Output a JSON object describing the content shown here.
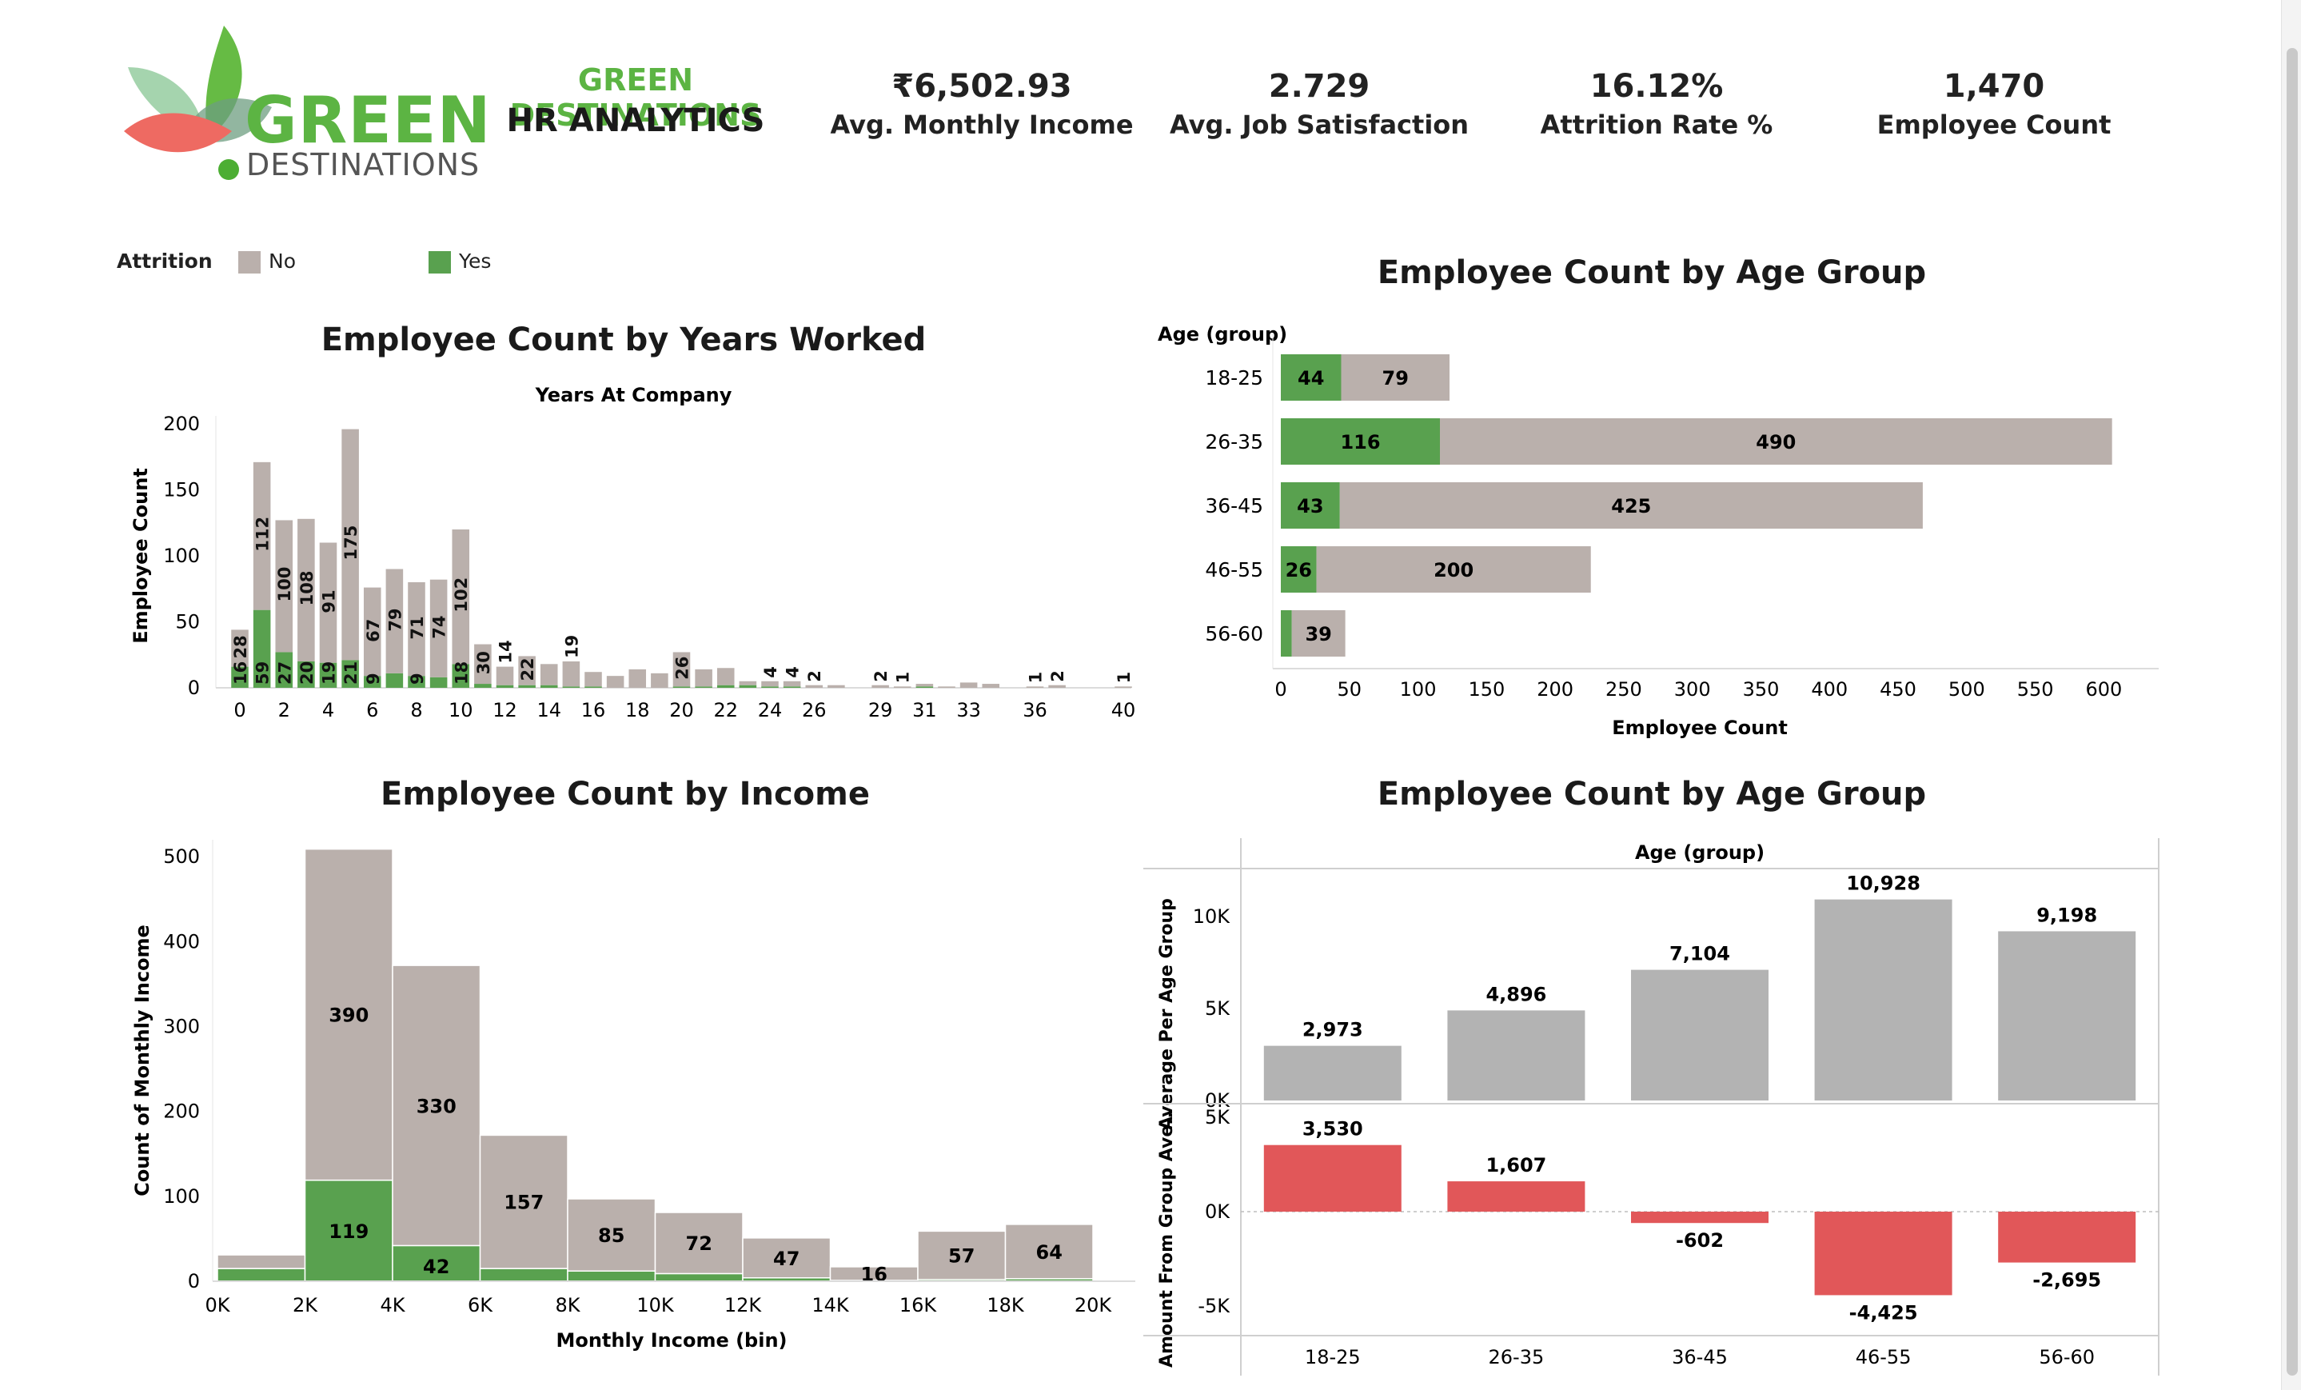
{
  "header": {
    "logo_word1": "GREEN",
    "logo_word2": "DESTINATIONS",
    "brand_title": "GREEN DESTINATIONS",
    "brand_subtitle": "HR ANALYTICS"
  },
  "kpis": [
    {
      "value": "₹6,502.93",
      "label": "Avg. Monthly Income"
    },
    {
      "value": "2.729",
      "label": "Avg. Job Satisfaction"
    },
    {
      "value": "16.12%",
      "label": "Attrition Rate %"
    },
    {
      "value": "1,470",
      "label": "Employee Count"
    }
  ],
  "legend": {
    "title": "Attrition",
    "items": [
      {
        "label": "No",
        "color": "#bab0ac"
      },
      {
        "label": "Yes",
        "color": "#59a14f"
      }
    ]
  },
  "colors": {
    "no": "#bab0ac",
    "yes": "#59a14f",
    "avg_bar": "#b3b3b3",
    "diff_bar": "#e15759"
  },
  "chart_data": [
    {
      "type": "bar",
      "title": "Employee Count by Years Worked",
      "subtitle": "Years At Company",
      "ylabel": "Employee Count",
      "ylim": [
        0,
        200
      ],
      "yticks": [
        0,
        50,
        100,
        150,
        200
      ],
      "xticks": [
        "0",
        "2",
        "4",
        "6",
        "8",
        "10",
        "12",
        "14",
        "16",
        "18",
        "20",
        "22",
        "24",
        "26",
        "29",
        "31",
        "33",
        "36",
        "40"
      ],
      "categories": [
        0,
        1,
        2,
        3,
        4,
        5,
        6,
        7,
        8,
        9,
        10,
        11,
        12,
        13,
        14,
        15,
        16,
        17,
        18,
        19,
        20,
        21,
        22,
        23,
        24,
        25,
        26,
        27,
        29,
        30,
        31,
        32,
        33,
        34,
        36,
        37,
        40
      ],
      "series": [
        {
          "name": "Yes",
          "values": [
            16,
            59,
            27,
            20,
            19,
            21,
            9,
            11,
            9,
            8,
            18,
            3,
            2,
            2,
            2,
            1,
            1,
            0,
            0,
            0,
            1,
            1,
            2,
            2,
            1,
            1,
            0,
            0,
            0,
            0,
            1,
            0,
            0,
            0,
            0,
            0,
            0
          ],
          "labels": [
            "16",
            "59",
            "27",
            "20",
            "19",
            "21",
            "9",
            "",
            "9",
            "",
            "18",
            "",
            "",
            "",
            "",
            "",
            "",
            "",
            "",
            "",
            "",
            "",
            "",
            "",
            "",
            "",
            "",
            "",
            "",
            "",
            "",
            "",
            "",
            "",
            "",
            "",
            ""
          ]
        },
        {
          "name": "No",
          "values": [
            28,
            112,
            100,
            108,
            91,
            175,
            67,
            79,
            71,
            74,
            102,
            30,
            14,
            22,
            16,
            19,
            11,
            9,
            14,
            11,
            26,
            13,
            13,
            3,
            4,
            4,
            2,
            2,
            2,
            1,
            2,
            1,
            4,
            3,
            1,
            2,
            1
          ],
          "labels": [
            "28",
            "112",
            "100",
            "108",
            "91",
            "175",
            "67",
            "79",
            "71",
            "74",
            "102",
            "30",
            "14",
            "22",
            "",
            "19",
            "",
            "",
            "",
            "",
            "26",
            "",
            "",
            "",
            "4",
            "4",
            "2",
            "",
            "2",
            "1",
            "",
            "",
            "",
            "",
            "1",
            "2",
            "1"
          ]
        }
      ]
    },
    {
      "type": "bar",
      "orientation": "horizontal",
      "title": "Employee Count by Age Group",
      "ylabel": "Age (group)",
      "xlabel": "Employee Count",
      "xlim": [
        0,
        640
      ],
      "xticks": [
        0,
        50,
        100,
        150,
        200,
        250,
        300,
        350,
        400,
        450,
        500,
        550,
        600
      ],
      "categories": [
        "18-25",
        "26-35",
        "36-45",
        "46-55",
        "56-60"
      ],
      "series": [
        {
          "name": "Yes",
          "values": [
            44,
            116,
            43,
            26,
            8
          ],
          "labels": [
            "44",
            "116",
            "43",
            "26",
            ""
          ]
        },
        {
          "name": "No",
          "values": [
            79,
            490,
            425,
            200,
            39
          ],
          "labels": [
            "79",
            "490",
            "425",
            "200",
            "39"
          ]
        }
      ]
    },
    {
      "type": "bar",
      "title": "Employee Count by Income",
      "xlabel": "Monthly Income (bin)",
      "ylabel": "Count of Monthly Income",
      "ylim": [
        0,
        520
      ],
      "yticks": [
        0,
        100,
        200,
        300,
        400,
        500
      ],
      "xticks": [
        "0K",
        "2K",
        "4K",
        "6K",
        "8K",
        "10K",
        "12K",
        "14K",
        "16K",
        "18K",
        "20K"
      ],
      "categories": [
        "0K",
        "2K",
        "4K",
        "6K",
        "8K",
        "10K",
        "12K",
        "14K",
        "16K",
        "18K"
      ],
      "series": [
        {
          "name": "Yes",
          "values": [
            15,
            119,
            42,
            15,
            12,
            9,
            4,
            1,
            2,
            3
          ],
          "labels": [
            "",
            "119",
            "42",
            "",
            "",
            "",
            "",
            "",
            "",
            ""
          ]
        },
        {
          "name": "No",
          "values": [
            16,
            390,
            330,
            157,
            85,
            72,
            47,
            16,
            57,
            64
          ],
          "labels": [
            "",
            "390",
            "330",
            "157",
            "85",
            "72",
            "47",
            "16",
            "57",
            "64"
          ]
        }
      ]
    },
    {
      "type": "bar",
      "title": "Employee Count by Age Group",
      "subtitle": "Age (group)",
      "categories": [
        "18-25",
        "26-35",
        "36-45",
        "46-55",
        "56-60"
      ],
      "panels": [
        {
          "ylabel": "Average Per Age Group",
          "ylim": [
            0,
            12000
          ],
          "yticks": [
            "10K",
            "5K",
            "0K"
          ],
          "ytick_values": [
            10000,
            5000,
            0
          ],
          "values": [
            2973,
            4896,
            7104,
            10928,
            9198
          ],
          "labels": [
            "2,973",
            "4,896",
            "7,104",
            "10,928",
            "9,198"
          ]
        },
        {
          "ylabel": "Amount From Group Ave..",
          "ylim": [
            -6000,
            6000
          ],
          "yticks": [
            "5K",
            "0K",
            "-5K"
          ],
          "ytick_values": [
            5000,
            0,
            -5000
          ],
          "values": [
            3530,
            1607,
            -602,
            -4425,
            -2695
          ],
          "labels": [
            "3,530",
            "1,607",
            "-602",
            "-4,425",
            "-2,695"
          ]
        }
      ]
    }
  ]
}
